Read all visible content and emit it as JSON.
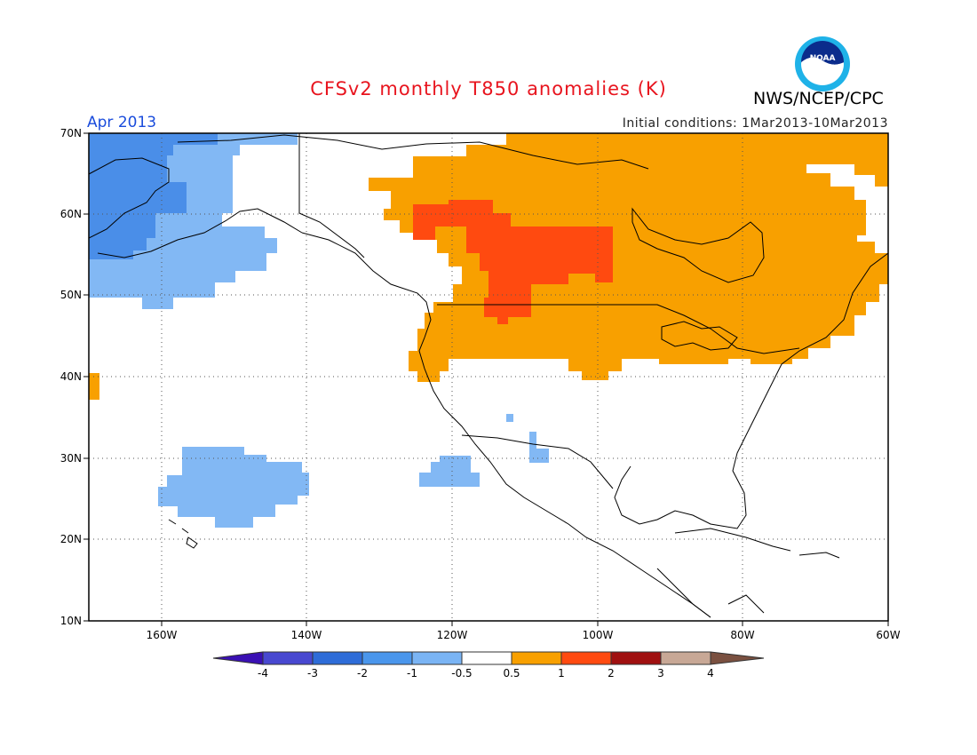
{
  "header": {
    "title": "CFSv2 monthly T850 anomalies (K)",
    "org": "NWS/NCEP/CPC",
    "logo_text": "NOAA",
    "month": "Apr 2013",
    "initial_conditions": "Initial conditions: 1Mar2013-10Mar2013"
  },
  "axes": {
    "lat_labels": [
      "70N",
      "60N",
      "50N",
      "40N",
      "30N",
      "20N",
      "10N"
    ],
    "lon_labels": [
      "160W",
      "140W",
      "120W",
      "100W",
      "80W",
      "60W"
    ]
  },
  "colorbar": {
    "labels": [
      "-4",
      "-3",
      "-2",
      "-1",
      "-0.5",
      "0.5",
      "1",
      "2",
      "3",
      "4"
    ],
    "colors": [
      "#3a10b4",
      "#4848d0",
      "#2e6cd8",
      "#4a96ec",
      "#7ab4f4",
      "#ffffff",
      "#f8a000",
      "#ff4a10",
      "#a01010",
      "#c8a896",
      "#7a5040"
    ]
  },
  "legend_colors": {
    "neg_2_to_1": "#4a8ee8",
    "neg_1_to_half": "#82b8f4",
    "pos_half_to_1": "#f8a000",
    "pos_1_to_2": "#ff4a10"
  }
}
